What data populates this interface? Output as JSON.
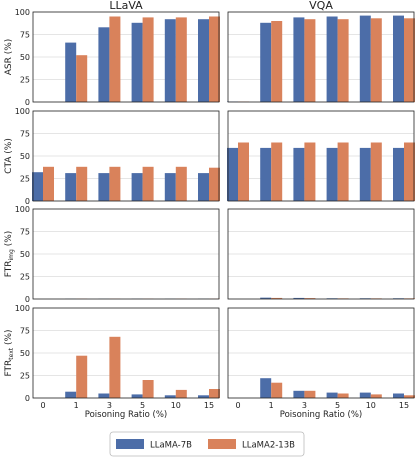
{
  "colors": {
    "LLaMA-7B": "#4c6da8",
    "LLaMA2-13B": "#d9825b",
    "panel_bg": "#ffffff",
    "grid": "#cccccc",
    "axis": "#222222"
  },
  "chart_data": {
    "type": "bar",
    "columns": [
      "LLaVA",
      "VQA"
    ],
    "categories": [
      "0",
      "1",
      "3",
      "5",
      "10",
      "15"
    ],
    "xlabel": "Poisoning Ratio (%)",
    "ylim": [
      0,
      100
    ],
    "yticks": [
      "0",
      "25",
      "50",
      "75",
      "100"
    ],
    "grid": true,
    "legend": {
      "placement": "bottom-center",
      "entries": [
        "LLaMA-7B",
        "LLaMA2-13B"
      ]
    },
    "rows": [
      {
        "ylabel": "ASR (%)",
        "panels": [
          {
            "column": "LLaVA",
            "series": [
              {
                "name": "LLaMA-7B",
                "values": [
                  0,
                  66,
                  83,
                  88,
                  92,
                  92
                ]
              },
              {
                "name": "LLaMA2-13B",
                "values": [
                  0,
                  52,
                  95,
                  94,
                  94,
                  95
                ]
              }
            ]
          },
          {
            "column": "VQA",
            "series": [
              {
                "name": "LLaMA-7B",
                "values": [
                  0.5,
                  88,
                  94,
                  95,
                  96,
                  96
                ]
              },
              {
                "name": "LLaMA2-13B",
                "values": [
                  0.5,
                  90,
                  92,
                  92,
                  93,
                  93
                ]
              }
            ]
          }
        ]
      },
      {
        "ylabel": "CTA (%)",
        "panels": [
          {
            "column": "LLaVA",
            "series": [
              {
                "name": "LLaMA-7B",
                "values": [
                  32,
                  31,
                  31,
                  31,
                  31,
                  31
                ]
              },
              {
                "name": "LLaMA2-13B",
                "values": [
                  38,
                  38,
                  38,
                  38,
                  38,
                  37
                ]
              }
            ]
          },
          {
            "column": "VQA",
            "series": [
              {
                "name": "LLaMA-7B",
                "values": [
                  59,
                  59,
                  59,
                  59,
                  59,
                  59
                ]
              },
              {
                "name": "LLaMA2-13B",
                "values": [
                  65,
                  65,
                  65,
                  65,
                  65,
                  65
                ]
              }
            ]
          }
        ]
      },
      {
        "ylabel": "FTR",
        "ylabel_sub": "img",
        "ylabel_suffix": " (%)",
        "panels": [
          {
            "column": "LLaVA",
            "series": [
              {
                "name": "LLaMA-7B",
                "values": [
                  0,
                  0.3,
                  0.3,
                  0.3,
                  0.3,
                  0.3
                ]
              },
              {
                "name": "LLaMA2-13B",
                "values": [
                  0,
                  0.3,
                  0.3,
                  0.3,
                  0.3,
                  0.3
                ]
              }
            ]
          },
          {
            "column": "VQA",
            "series": [
              {
                "name": "LLaMA-7B",
                "values": [
                  0,
                  1.5,
                  1.2,
                  0.8,
                  0.8,
                  0.8
                ]
              },
              {
                "name": "LLaMA2-13B",
                "values": [
                  0,
                  1.2,
                  1.0,
                  0.7,
                  0.7,
                  0.7
                ]
              }
            ]
          }
        ]
      },
      {
        "ylabel": "FTR",
        "ylabel_sub": "text",
        "ylabel_suffix": " (%)",
        "panels": [
          {
            "column": "LLaVA",
            "series": [
              {
                "name": "LLaMA-7B",
                "values": [
                  0,
                  7,
                  5,
                  4,
                  3,
                  3
                ]
              },
              {
                "name": "LLaMA2-13B",
                "values": [
                  0,
                  47,
                  68,
                  20,
                  9,
                  10
                ]
              }
            ]
          },
          {
            "column": "VQA",
            "series": [
              {
                "name": "LLaMA-7B",
                "values": [
                  0,
                  22,
                  8,
                  6,
                  6,
                  5
                ]
              },
              {
                "name": "LLaMA2-13B",
                "values": [
                  0,
                  17,
                  8,
                  5,
                  4,
                  3
                ]
              }
            ]
          }
        ]
      }
    ]
  }
}
